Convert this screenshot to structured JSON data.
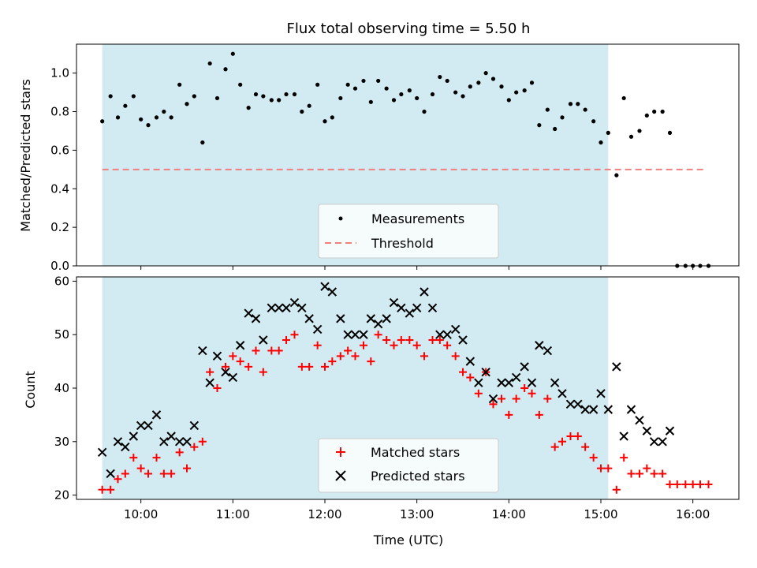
{
  "chart_data": [
    {
      "type": "scatter",
      "title": "Flux total observing time = 5.50 h",
      "xlabel": "",
      "ylabel": "Matched/Predicted stars",
      "xlim": [
        9.3,
        16.5
      ],
      "ylim": [
        0,
        1.15
      ],
      "yticks": [
        0.0,
        0.2,
        0.4,
        0.6,
        0.8,
        1.0
      ],
      "ytick_labels": [
        "0.0",
        "0.2",
        "0.4",
        "0.6",
        "0.8",
        "1.0"
      ],
      "shaded_interval": [
        9.58,
        15.08
      ],
      "threshold": {
        "value": 0.5,
        "x_range": [
          9.58,
          16.12
        ],
        "color": "#f08080"
      },
      "legend": {
        "position": "lower-center",
        "entries": [
          "Measurements",
          "Threshold"
        ]
      },
      "series": [
        {
          "name": "Measurements",
          "x": [
            9.58,
            9.67,
            9.75,
            9.83,
            9.92,
            10.0,
            10.08,
            10.17,
            10.25,
            10.33,
            10.42,
            10.5,
            10.58,
            10.67,
            10.75,
            10.83,
            10.92,
            11.0,
            11.08,
            11.17,
            11.25,
            11.33,
            11.42,
            11.5,
            11.58,
            11.67,
            11.75,
            11.83,
            11.92,
            12.0,
            12.08,
            12.17,
            12.25,
            12.33,
            12.42,
            12.5,
            12.58,
            12.67,
            12.75,
            12.83,
            12.92,
            13.0,
            13.08,
            13.17,
            13.25,
            13.33,
            13.42,
            13.5,
            13.58,
            13.67,
            13.75,
            13.83,
            13.92,
            14.0,
            14.08,
            14.17,
            14.25,
            14.33,
            14.42,
            14.5,
            14.58,
            14.67,
            14.75,
            14.83,
            14.92,
            15.0,
            15.08,
            15.17,
            15.25,
            15.33,
            15.42,
            15.5,
            15.58,
            15.67,
            15.75,
            15.83,
            15.92,
            16.0,
            16.08,
            16.17
          ],
          "y": [
            0.75,
            0.88,
            0.77,
            0.83,
            0.88,
            0.76,
            0.73,
            0.77,
            0.8,
            0.77,
            0.94,
            0.84,
            0.88,
            0.64,
            1.05,
            0.87,
            1.02,
            1.1,
            0.94,
            0.82,
            0.89,
            0.88,
            0.86,
            0.86,
            0.89,
            0.89,
            0.8,
            0.83,
            0.94,
            0.75,
            0.77,
            0.87,
            0.94,
            0.92,
            0.96,
            0.85,
            0.96,
            0.92,
            0.86,
            0.89,
            0.91,
            0.87,
            0.8,
            0.89,
            0.98,
            0.96,
            0.9,
            0.88,
            0.93,
            0.95,
            1.0,
            0.97,
            0.93,
            0.86,
            0.9,
            0.91,
            0.95,
            0.73,
            0.81,
            0.71,
            0.77,
            0.84,
            0.84,
            0.81,
            0.75,
            0.64,
            0.69,
            0.47,
            0.87,
            0.67,
            0.7,
            0.78,
            0.8,
            0.8,
            0.69,
            0.0,
            0.0,
            0.0,
            0.0,
            0.0
          ]
        }
      ]
    },
    {
      "type": "scatter",
      "title": "",
      "xlabel": "Time (UTC)",
      "ylabel": "Count",
      "xlim": [
        9.3,
        16.5
      ],
      "ylim": [
        19.2,
        60.8
      ],
      "yticks": [
        20,
        30,
        40,
        50,
        60
      ],
      "ytick_labels": [
        "20",
        "30",
        "40",
        "50",
        "60"
      ],
      "xticks": [
        10,
        11,
        12,
        13,
        14,
        15,
        16
      ],
      "xtick_labels": [
        "10:00",
        "11:00",
        "12:00",
        "13:00",
        "14:00",
        "15:00",
        "16:00"
      ],
      "shaded_interval": [
        9.58,
        15.08
      ],
      "legend": {
        "position": "lower-center",
        "entries": [
          "Matched stars",
          "Predicted stars"
        ]
      },
      "series": [
        {
          "name": "Matched stars",
          "marker": "+",
          "color": "#ff0000",
          "x": [
            9.58,
            9.67,
            9.75,
            9.83,
            9.92,
            10.0,
            10.08,
            10.17,
            10.25,
            10.33,
            10.42,
            10.5,
            10.58,
            10.67,
            10.75,
            10.83,
            10.92,
            11.0,
            11.08,
            11.17,
            11.25,
            11.33,
            11.42,
            11.5,
            11.58,
            11.67,
            11.75,
            11.83,
            11.92,
            12.0,
            12.08,
            12.17,
            12.25,
            12.33,
            12.42,
            12.5,
            12.58,
            12.67,
            12.75,
            12.83,
            12.92,
            13.0,
            13.08,
            13.17,
            13.25,
            13.33,
            13.42,
            13.5,
            13.58,
            13.67,
            13.75,
            13.83,
            13.92,
            14.0,
            14.08,
            14.17,
            14.25,
            14.33,
            14.42,
            14.5,
            14.58,
            14.67,
            14.75,
            14.83,
            14.92,
            15.0,
            15.08,
            15.17,
            15.25,
            15.33,
            15.42,
            15.5,
            15.58,
            15.67,
            15.75,
            15.83,
            15.92,
            16.0,
            16.08,
            16.17
          ],
          "y": [
            21,
            21,
            23,
            24,
            27,
            25,
            24,
            27,
            24,
            24,
            28,
            25,
            29,
            30,
            43,
            40,
            44,
            46,
            45,
            44,
            47,
            43,
            47,
            47,
            49,
            50,
            44,
            44,
            48,
            44,
            45,
            46,
            47,
            46,
            48,
            45,
            50,
            49,
            48,
            49,
            49,
            48,
            46,
            49,
            49,
            48,
            46,
            43,
            42,
            39,
            43,
            37,
            38,
            35,
            38,
            40,
            39,
            35,
            38,
            29,
            30,
            31,
            31,
            29,
            27,
            25,
            25,
            21,
            27,
            24,
            24,
            25,
            24,
            24,
            22,
            22,
            22,
            22,
            22,
            22
          ]
        },
        {
          "name": "Predicted stars",
          "marker": "x",
          "color": "#000000",
          "x": [
            9.58,
            9.67,
            9.75,
            9.83,
            9.92,
            10.0,
            10.08,
            10.17,
            10.25,
            10.33,
            10.42,
            10.5,
            10.58,
            10.67,
            10.75,
            10.83,
            10.92,
            11.0,
            11.08,
            11.17,
            11.25,
            11.33,
            11.42,
            11.5,
            11.58,
            11.67,
            11.75,
            11.83,
            11.92,
            12.0,
            12.08,
            12.17,
            12.25,
            12.33,
            12.42,
            12.5,
            12.58,
            12.67,
            12.75,
            12.83,
            12.92,
            13.0,
            13.08,
            13.17,
            13.25,
            13.33,
            13.42,
            13.5,
            13.58,
            13.67,
            13.75,
            13.83,
            13.92,
            14.0,
            14.08,
            14.17,
            14.25,
            14.33,
            14.42,
            14.5,
            14.58,
            14.67,
            14.75,
            14.83,
            14.92,
            15.0,
            15.08,
            15.17,
            15.25,
            15.33,
            15.42,
            15.5,
            15.58,
            15.67,
            15.75
          ],
          "y": [
            28,
            24,
            30,
            29,
            31,
            33,
            33,
            35,
            30,
            31,
            30,
            30,
            33,
            47,
            41,
            46,
            43,
            42,
            48,
            54,
            53,
            49,
            55,
            55,
            55,
            56,
            55,
            53,
            51,
            59,
            58,
            53,
            50,
            50,
            50,
            53,
            52,
            53,
            56,
            55,
            54,
            55,
            58,
            55,
            50,
            50,
            51,
            49,
            45,
            41,
            43,
            38,
            41,
            41,
            42,
            44,
            41,
            48,
            47,
            41,
            39,
            37,
            37,
            36,
            36,
            39,
            36,
            44,
            31,
            36,
            34,
            32,
            30,
            30,
            32
          ]
        }
      ]
    }
  ]
}
